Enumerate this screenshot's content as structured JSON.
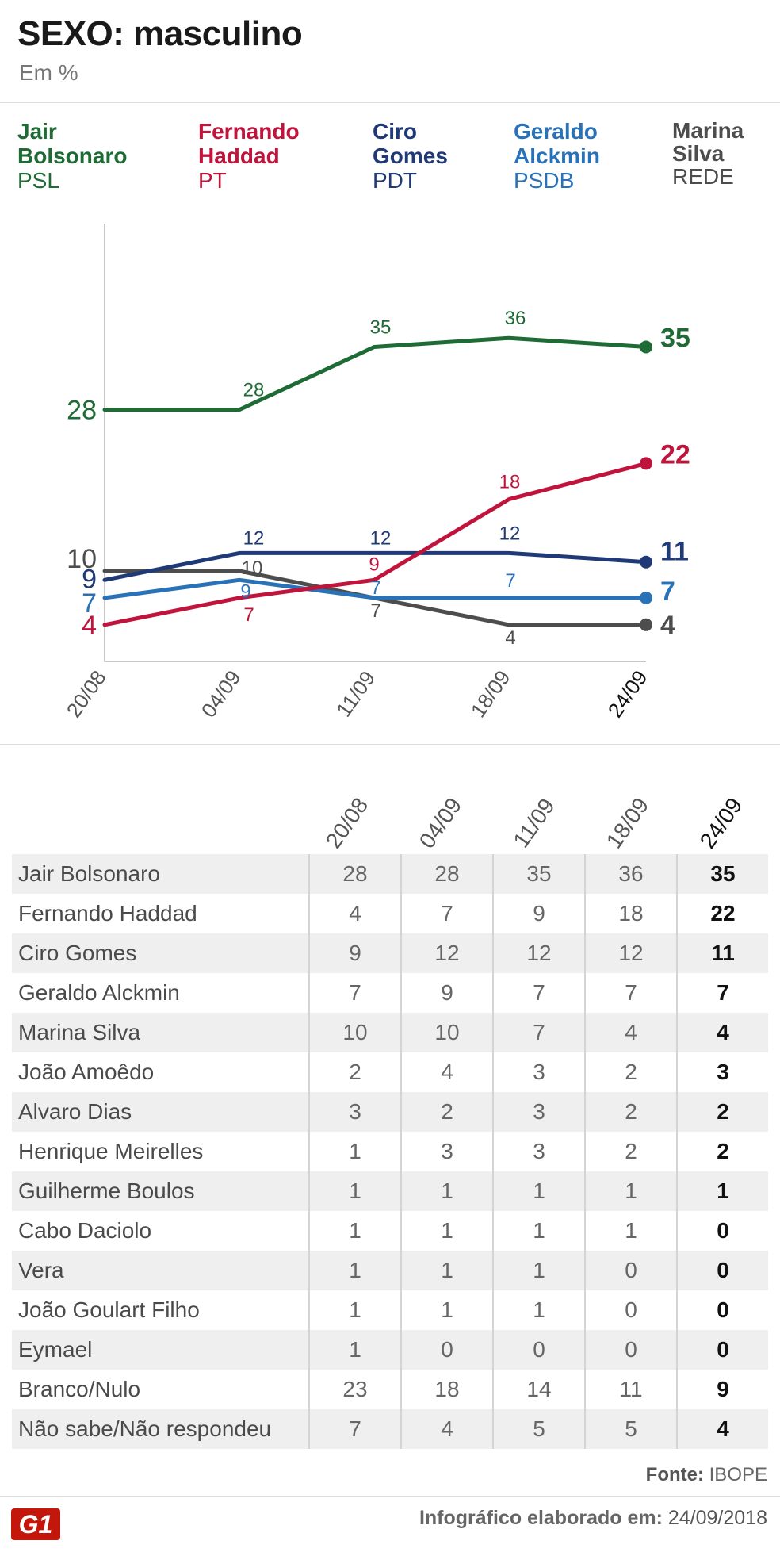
{
  "header": {
    "title": "SEXO: masculino",
    "subtitle": "Em %"
  },
  "legend": [
    {
      "name_line1": "Jair",
      "name_line2": "Bolsonaro",
      "party": "PSL",
      "color": "#1e6b35"
    },
    {
      "name_line1": "Fernando",
      "name_line2": "Haddad",
      "party": "PT",
      "color": "#c0143c"
    },
    {
      "name_line1": "Ciro",
      "name_line2": "Gomes",
      "party": "PDT",
      "color": "#203a78"
    },
    {
      "name_line1": "Geraldo",
      "name_line2": "Alckmin",
      "party": "PSDB",
      "color": "#2a72b8"
    },
    {
      "name_line1": "Marina",
      "name_line2": "Silva",
      "party": "REDE",
      "color": "#4d4d4d"
    }
  ],
  "chart_data": {
    "type": "line",
    "title": "SEXO: masculino",
    "subtitle": "Em %",
    "xlabel": "",
    "ylabel": "",
    "x": [
      "20/08",
      "04/09",
      "11/09",
      "18/09",
      "24/09"
    ],
    "ylim": [
      0,
      40
    ],
    "grid": false,
    "series": [
      {
        "name": "Jair Bolsonaro",
        "color": "#1e6b35",
        "values": [
          28,
          28,
          35,
          36,
          35
        ]
      },
      {
        "name": "Fernando Haddad",
        "color": "#c0143c",
        "values": [
          4,
          7,
          9,
          18,
          22
        ]
      },
      {
        "name": "Ciro Gomes",
        "color": "#203a78",
        "values": [
          9,
          12,
          12,
          12,
          11
        ]
      },
      {
        "name": "Geraldo Alckmin",
        "color": "#2a72b8",
        "values": [
          7,
          9,
          7,
          7,
          7
        ]
      },
      {
        "name": "Marina Silva",
        "color": "#4d4d4d",
        "values": [
          10,
          10,
          7,
          4,
          4
        ]
      }
    ]
  },
  "table": {
    "columns": [
      "20/08",
      "04/09",
      "11/09",
      "18/09",
      "24/09"
    ],
    "rows": [
      {
        "name": "Jair Bolsonaro",
        "values": [
          "28",
          "28",
          "35",
          "36",
          "35"
        ]
      },
      {
        "name": "Fernando Haddad",
        "values": [
          "4",
          "7",
          "9",
          "18",
          "22"
        ]
      },
      {
        "name": "Ciro Gomes",
        "values": [
          "9",
          "12",
          "12",
          "12",
          "11"
        ]
      },
      {
        "name": "Geraldo Alckmin",
        "values": [
          "7",
          "9",
          "7",
          "7",
          "7"
        ]
      },
      {
        "name": "Marina Silva",
        "values": [
          "10",
          "10",
          "7",
          "4",
          "4"
        ]
      },
      {
        "name": "João Amoêdo",
        "values": [
          "2",
          "4",
          "3",
          "2",
          "3"
        ]
      },
      {
        "name": "Alvaro Dias",
        "values": [
          "3",
          "2",
          "3",
          "2",
          "2"
        ]
      },
      {
        "name": "Henrique Meirelles",
        "values": [
          "1",
          "3",
          "3",
          "2",
          "2"
        ]
      },
      {
        "name": "Guilherme Boulos",
        "values": [
          "1",
          "1",
          "1",
          "1",
          "1"
        ]
      },
      {
        "name": "Cabo Daciolo",
        "values": [
          "1",
          "1",
          "1",
          "1",
          "0"
        ]
      },
      {
        "name": "Vera",
        "values": [
          "1",
          "1",
          "1",
          "0",
          "0"
        ]
      },
      {
        "name": "João Goulart Filho",
        "values": [
          "1",
          "1",
          "1",
          "0",
          "0"
        ]
      },
      {
        "name": "Eymael",
        "values": [
          "1",
          "0",
          "0",
          "0",
          "0"
        ]
      },
      {
        "name": "Branco/Nulo",
        "values": [
          "23",
          "18",
          "14",
          "11",
          "9"
        ]
      },
      {
        "name": "Não sabe/Não respondeu",
        "values": [
          "7",
          "4",
          "5",
          "5",
          "4"
        ]
      }
    ]
  },
  "footer": {
    "source_label": "Fonte:",
    "source": "IBOPE",
    "logo": "G1",
    "credit_label": "Infográfico elaborado em:",
    "credit_date": "24/09/2018"
  }
}
